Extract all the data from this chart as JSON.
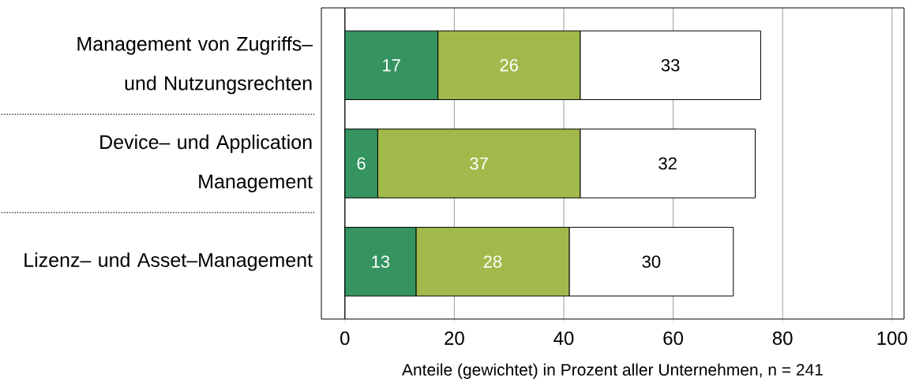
{
  "chart_data": {
    "type": "bar",
    "orientation": "horizontal",
    "stacked": true,
    "categories": [
      "Management von Zugriffs– und Nutzungsrechten",
      "Device– und Application Management",
      "Lizenz– und Asset–Management"
    ],
    "series": [
      {
        "color": "#35945f",
        "values": [
          17,
          6,
          13
        ]
      },
      {
        "color": "#a2b94c",
        "values": [
          26,
          37,
          28
        ]
      },
      {
        "color": "#ffffff",
        "values": [
          33,
          32,
          30
        ]
      }
    ],
    "xlabel": "Anteile (gewichtet) in Prozent aller Unternehmen, n = 241",
    "xlim": [
      -4.3,
      102.2
    ],
    "xticks": [
      0,
      20,
      40,
      60,
      80,
      100
    ],
    "grid": "x",
    "data_labels": true,
    "ref_lines": [
      {
        "axis": "x",
        "value": 0,
        "color": "#000000"
      }
    ]
  }
}
